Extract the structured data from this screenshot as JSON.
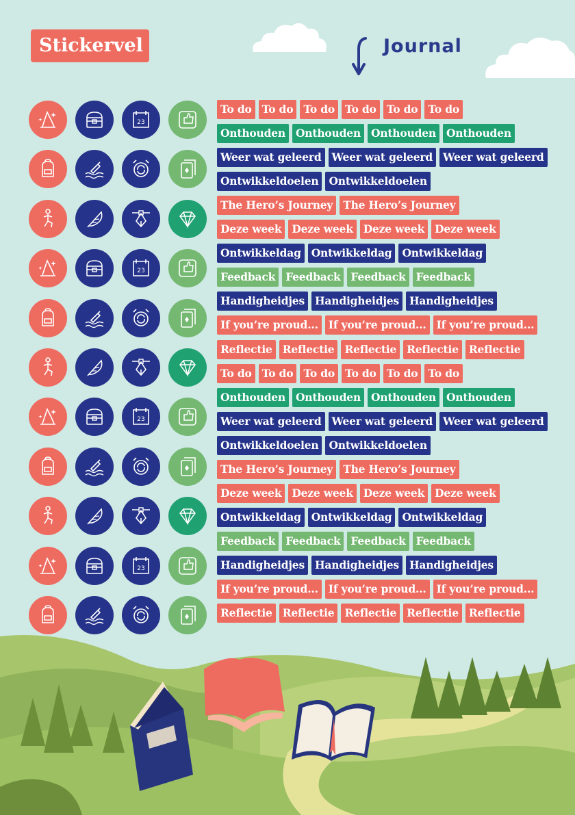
{
  "header": {
    "title": "Stickervel",
    "journal_label": "Journal"
  },
  "colors": {
    "background": "#cfe9e5",
    "coral": "#ee6b60",
    "navy": "#25338a",
    "green": "#1fa172",
    "light_green": "#74b872"
  },
  "icon_rows": [
    {
      "icons": [
        "wizard-hat-icon",
        "treasure-chest-icon",
        "calendar-map-icon",
        "thumbs-up-speech-icon"
      ]
    },
    {
      "icons": [
        "backpack-icon",
        "bottle-in-water-icon",
        "alarm-clock-icon",
        "playing-cards-icon"
      ]
    },
    {
      "icons": [
        "hero-pose-icon",
        "feather-icon",
        "pen-tool-icon",
        "diamond-icon"
      ]
    },
    {
      "icons": [
        "wizard-hat-icon",
        "treasure-chest-icon",
        "calendar-map-icon",
        "thumbs-up-speech-icon"
      ]
    },
    {
      "icons": [
        "backpack-icon",
        "bottle-in-water-icon",
        "alarm-clock-icon",
        "playing-cards-icon"
      ]
    },
    {
      "icons": [
        "hero-pose-icon",
        "feather-icon",
        "pen-tool-icon",
        "diamond-icon"
      ]
    },
    {
      "icons": [
        "wizard-hat-icon",
        "treasure-chest-icon",
        "calendar-map-icon",
        "thumbs-up-speech-icon"
      ]
    },
    {
      "icons": [
        "backpack-icon",
        "bottle-in-water-icon",
        "alarm-clock-icon",
        "playing-cards-icon"
      ]
    },
    {
      "icons": [
        "hero-pose-icon",
        "feather-icon",
        "pen-tool-icon",
        "diamond-icon"
      ]
    },
    {
      "icons": [
        "wizard-hat-icon",
        "treasure-chest-icon",
        "calendar-map-icon",
        "thumbs-up-speech-icon"
      ]
    },
    {
      "icons": [
        "backpack-icon",
        "bottle-in-water-icon",
        "alarm-clock-icon",
        "playing-cards-icon"
      ]
    }
  ],
  "tag_rows": [
    {
      "color": "coral",
      "labels": [
        "To do",
        "To do",
        "To do",
        "To do",
        "To do",
        "To do"
      ]
    },
    {
      "color": "green",
      "labels": [
        "Onthouden",
        "Onthouden",
        "Onthouden",
        "Onthouden"
      ]
    },
    {
      "color": "navy",
      "labels": [
        "Weer wat geleerd",
        "Weer wat geleerd",
        "Weer wat geleerd"
      ]
    },
    {
      "color": "navy",
      "labels": [
        "Ontwikkeldoelen",
        "Ontwikkeldoelen"
      ]
    },
    {
      "color": "coral",
      "labels": [
        "The Hero’s Journey",
        "The Hero’s Journey"
      ]
    },
    {
      "color": "coral",
      "labels": [
        "Deze week",
        "Deze week",
        "Deze week",
        "Deze week"
      ]
    },
    {
      "color": "navy",
      "labels": [
        "Ontwikkeldag",
        "Ontwikkeldag",
        "Ontwikkeldag"
      ]
    },
    {
      "color": "lgreen",
      "labels": [
        "Feedback",
        "Feedback",
        "Feedback",
        "Feedback"
      ]
    },
    {
      "color": "navy",
      "labels": [
        "Handigheidjes",
        "Handigheidjes",
        "Handigheidjes"
      ]
    },
    {
      "color": "coral",
      "labels": [
        "If you’re proud...",
        "If you’re proud...",
        "If you’re proud..."
      ]
    },
    {
      "color": "coral",
      "labels": [
        "Reflectie",
        "Reflectie",
        "Reflectie",
        "Reflectie",
        "Reflectie"
      ]
    },
    {
      "color": "coral",
      "labels": [
        "To do",
        "To do",
        "To do",
        "To do",
        "To do",
        "To do"
      ]
    },
    {
      "color": "green",
      "labels": [
        "Onthouden",
        "Onthouden",
        "Onthouden",
        "Onthouden"
      ]
    },
    {
      "color": "navy",
      "labels": [
        "Weer wat geleerd",
        "Weer wat geleerd",
        "Weer wat geleerd"
      ]
    },
    {
      "color": "navy",
      "labels": [
        "Ontwikkeldoelen",
        "Ontwikkeldoelen"
      ]
    },
    {
      "color": "coral",
      "labels": [
        "The Hero’s Journey",
        "The Hero’s Journey"
      ]
    },
    {
      "color": "coral",
      "labels": [
        "Deze week",
        "Deze week",
        "Deze week",
        "Deze week"
      ]
    },
    {
      "color": "navy",
      "labels": [
        "Ontwikkeldag",
        "Ontwikkeldag",
        "Ontwikkeldag"
      ]
    },
    {
      "color": "lgreen",
      "labels": [
        "Feedback",
        "Feedback",
        "Feedback",
        "Feedback"
      ]
    },
    {
      "color": "navy",
      "labels": [
        "Handigheidjes",
        "Handigheidjes",
        "Handigheidjes"
      ]
    },
    {
      "color": "coral",
      "labels": [
        "If you’re proud...",
        "If you’re proud...",
        "If you’re proud..."
      ]
    },
    {
      "color": "coral",
      "labels": [
        "Reflectie",
        "Reflectie",
        "Reflectie",
        "Reflectie",
        "Reflectie"
      ]
    }
  ]
}
